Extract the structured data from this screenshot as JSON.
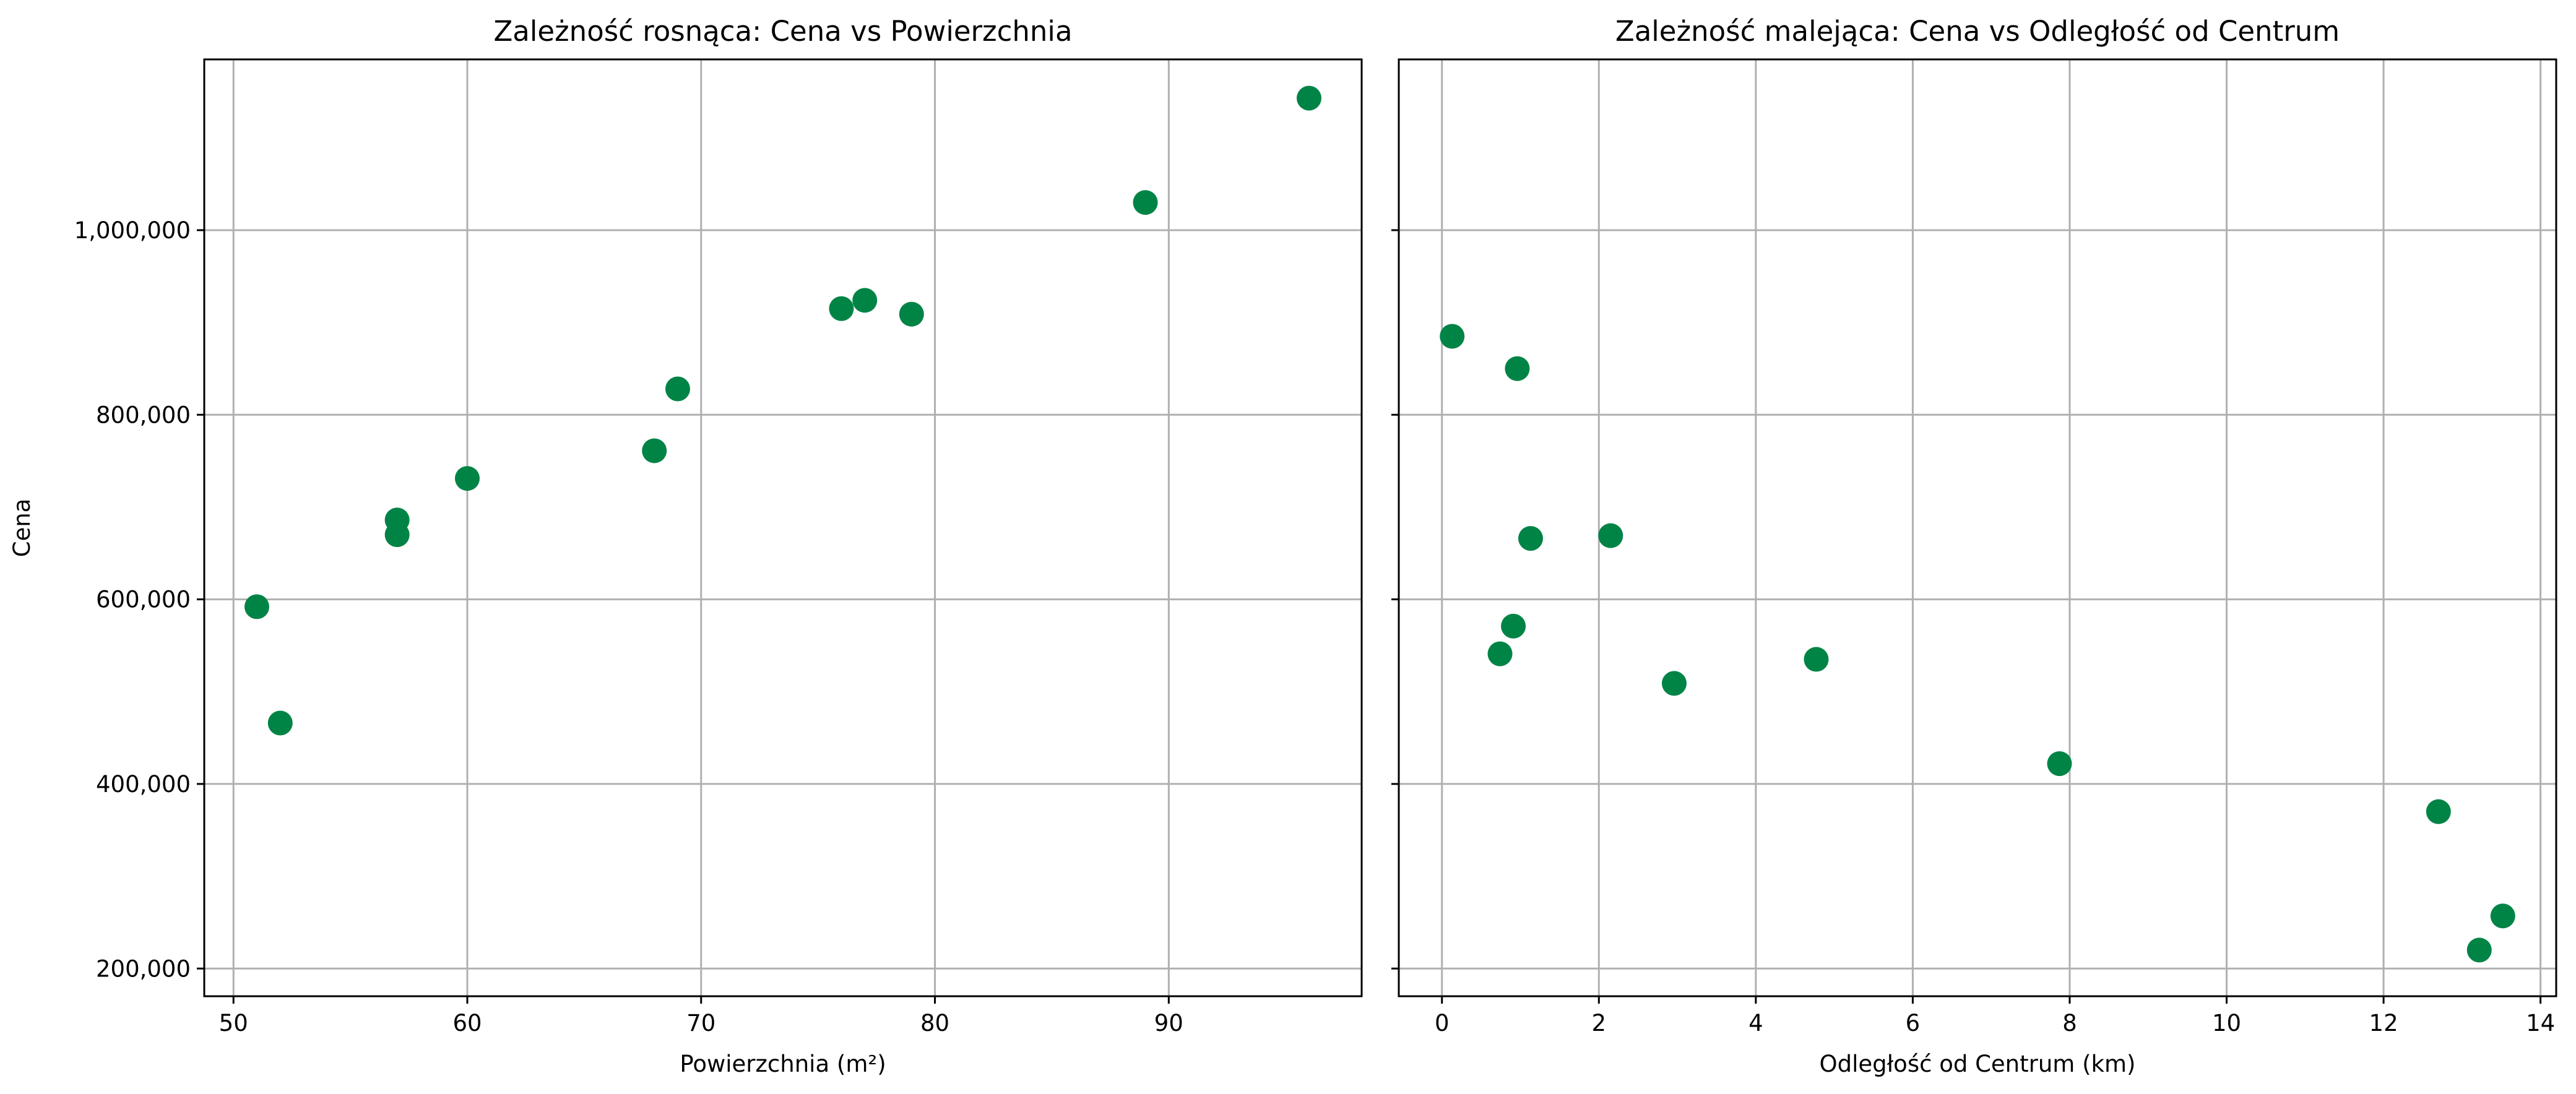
{
  "chart_data": [
    {
      "type": "scatter",
      "title": "Zależność rosnąca: Cena vs Powierzchnia",
      "xlabel": "Powierzchnia (m²)",
      "ylabel": "Cena",
      "xlim": [
        48.75,
        98.25
      ],
      "ylim": [
        170000,
        1185000
      ],
      "xticks": [
        50,
        60,
        70,
        80,
        90
      ],
      "xtick_labels": [
        "50",
        "60",
        "70",
        "80",
        "90"
      ],
      "yticks": [
        200000,
        400000,
        600000,
        800000,
        1000000
      ],
      "ytick_labels": [
        "200,000",
        "400,000",
        "600,000",
        "800,000",
        "1,000,000"
      ],
      "grid": true,
      "color": "#008446",
      "points": [
        {
          "x": 51,
          "y": 592000
        },
        {
          "x": 52,
          "y": 466000
        },
        {
          "x": 57,
          "y": 686000
        },
        {
          "x": 57,
          "y": 670000
        },
        {
          "x": 60,
          "y": 731000
        },
        {
          "x": 68,
          "y": 761000
        },
        {
          "x": 69,
          "y": 828000
        },
        {
          "x": 76,
          "y": 915000
        },
        {
          "x": 77,
          "y": 924000
        },
        {
          "x": 79,
          "y": 909000
        },
        {
          "x": 89,
          "y": 1030000
        },
        {
          "x": 96,
          "y": 1143000
        }
      ]
    },
    {
      "type": "scatter",
      "title": "Zależność malejąca: Cena vs Odległość od Centrum",
      "xlabel": "Odległość od Centrum (km)",
      "ylabel": "",
      "xlim": [
        -0.55,
        14.2
      ],
      "ylim": [
        170000,
        1185000
      ],
      "xticks": [
        0,
        2,
        4,
        6,
        8,
        10,
        12,
        14
      ],
      "xtick_labels": [
        "0",
        "2",
        "4",
        "6",
        "8",
        "10",
        "12",
        "14"
      ],
      "yticks": [
        200000,
        400000,
        600000,
        800000,
        1000000
      ],
      "ytick_labels": [],
      "grid": true,
      "color": "#008446",
      "points": [
        {
          "x": 0.13,
          "y": 885000
        },
        {
          "x": 0.96,
          "y": 850000
        },
        {
          "x": 0.91,
          "y": 571000
        },
        {
          "x": 0.74,
          "y": 541000
        },
        {
          "x": 1.13,
          "y": 666000
        },
        {
          "x": 2.15,
          "y": 669000
        },
        {
          "x": 2.96,
          "y": 509000
        },
        {
          "x": 4.77,
          "y": 535000
        },
        {
          "x": 7.87,
          "y": 422000
        },
        {
          "x": 12.7,
          "y": 370000
        },
        {
          "x": 13.22,
          "y": 220000
        },
        {
          "x": 13.52,
          "y": 257000
        }
      ]
    }
  ]
}
